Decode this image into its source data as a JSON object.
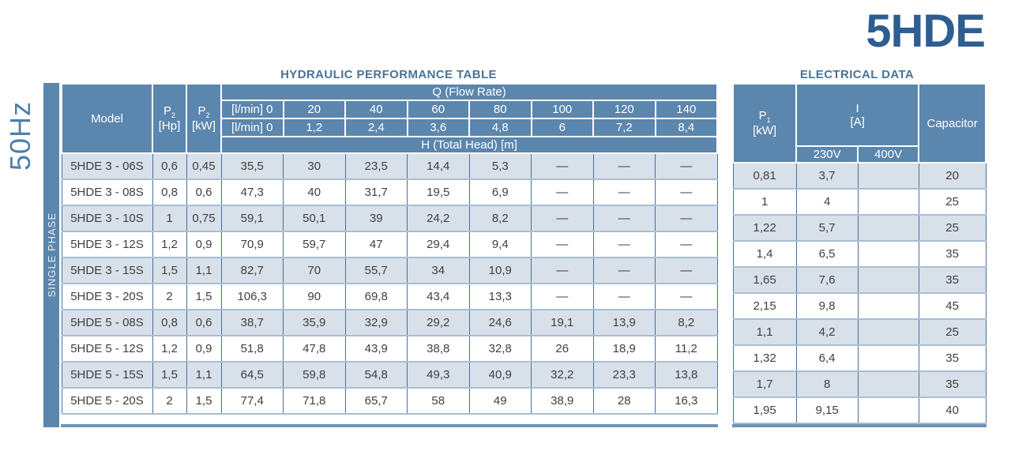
{
  "brand_title": "5HDE",
  "frequency": "50Hz",
  "phase": "SINGLE PHASE",
  "colors": {
    "header_blue": "#5b86ae",
    "row_light": "#d8e0ea",
    "row_white": "#ffffff",
    "border_dark": "#48709a",
    "border_light": "#a8bed4",
    "accent_bar": "#6d93b7",
    "brand_blue": "#2e5d92",
    "section_title_blue": "#4a7397",
    "body_text": "#3f3f3f"
  },
  "hydraulic_table": {
    "title": "HYDRAULIC PERFORMANCE TABLE",
    "model_header": "Model",
    "p2_symbol": "P",
    "p2_sub": "2",
    "p2_unit_hp": "[Hp]",
    "p2_unit_kw": "[kW]",
    "q_header": "Q (Flow Rate)",
    "flow_row_lmin": [
      "[l/min] 0",
      "20",
      "40",
      "60",
      "80",
      "100",
      "120",
      "140"
    ],
    "flow_row_alt": [
      "[l/min] 0",
      "1,2",
      "2,4",
      "3,6",
      "4,8",
      "6",
      "7,2",
      "8,4"
    ],
    "h_header": "H (Total Head) [m]"
  },
  "electrical_table": {
    "title": "ELECTRICAL DATA",
    "p1_symbol": "P",
    "p1_sub": "1",
    "p1_unit": "[kW]",
    "current_symbol": "I",
    "current_unit": "[A]",
    "voltage_230": "230V",
    "voltage_400": "400V",
    "capacitor_header": "Capacitor"
  },
  "rows": [
    {
      "model": "5HDE 3 - 06S",
      "p2_hp": "0,6",
      "p2_kw": "0,45",
      "head": [
        "35,5",
        "30",
        "23,5",
        "14,4",
        "5,3",
        "—",
        "—",
        "—"
      ],
      "p1_kw": "0,81",
      "i_230": "3,7",
      "i_400": "",
      "capacitor": "20"
    },
    {
      "model": "5HDE 3 - 08S",
      "p2_hp": "0,8",
      "p2_kw": "0,6",
      "head": [
        "47,3",
        "40",
        "31,7",
        "19,5",
        "6,9",
        "—",
        "—",
        "—"
      ],
      "p1_kw": "1",
      "i_230": "4",
      "i_400": "",
      "capacitor": "25"
    },
    {
      "model": "5HDE 3 - 10S",
      "p2_hp": "1",
      "p2_kw": "0,75",
      "head": [
        "59,1",
        "50,1",
        "39",
        "24,2",
        "8,2",
        "—",
        "—",
        "—"
      ],
      "p1_kw": "1,22",
      "i_230": "5,7",
      "i_400": "",
      "capacitor": "25"
    },
    {
      "model": "5HDE 3 - 12S",
      "p2_hp": "1,2",
      "p2_kw": "0,9",
      "head": [
        "70,9",
        "59,7",
        "47",
        "29,4",
        "9,4",
        "—",
        "—",
        "—"
      ],
      "p1_kw": "1,4",
      "i_230": "6,5",
      "i_400": "",
      "capacitor": "35"
    },
    {
      "model": "5HDE 3 - 15S",
      "p2_hp": "1,5",
      "p2_kw": "1,1",
      "head": [
        "82,7",
        "70",
        "55,7",
        "34",
        "10,9",
        "—",
        "—",
        "—"
      ],
      "p1_kw": "1,65",
      "i_230": "7,6",
      "i_400": "",
      "capacitor": "35"
    },
    {
      "model": "5HDE 3 - 20S",
      "p2_hp": "2",
      "p2_kw": "1,5",
      "head": [
        "106,3",
        "90",
        "69,8",
        "43,4",
        "13,3",
        "—",
        "—",
        "—"
      ],
      "p1_kw": "2,15",
      "i_230": "9,8",
      "i_400": "",
      "capacitor": "45"
    },
    {
      "model": "5HDE 5 - 08S",
      "p2_hp": "0,8",
      "p2_kw": "0,6",
      "head": [
        "38,7",
        "35,9",
        "32,9",
        "29,2",
        "24,6",
        "19,1",
        "13,9",
        "8,2"
      ],
      "p1_kw": "1,1",
      "i_230": "4,2",
      "i_400": "",
      "capacitor": "25"
    },
    {
      "model": "5HDE 5 - 12S",
      "p2_hp": "1,2",
      "p2_kw": "0,9",
      "head": [
        "51,8",
        "47,8",
        "43,9",
        "38,8",
        "32,8",
        "26",
        "18,9",
        "11,2"
      ],
      "p1_kw": "1,32",
      "i_230": "6,4",
      "i_400": "",
      "capacitor": "35"
    },
    {
      "model": "5HDE 5 - 15S",
      "p2_hp": "1,5",
      "p2_kw": "1,1",
      "head": [
        "64,5",
        "59,8",
        "54,8",
        "49,3",
        "40,9",
        "32,2",
        "23,3",
        "13,8"
      ],
      "p1_kw": "1,7",
      "i_230": "8",
      "i_400": "",
      "capacitor": "35"
    },
    {
      "model": "5HDE 5 - 20S",
      "p2_hp": "2",
      "p2_kw": "1,5",
      "head": [
        "77,4",
        "71,8",
        "65,7",
        "58",
        "49",
        "38,9",
        "28",
        "16,3"
      ],
      "p1_kw": "1,95",
      "i_230": "9,15",
      "i_400": "",
      "capacitor": "40"
    }
  ]
}
